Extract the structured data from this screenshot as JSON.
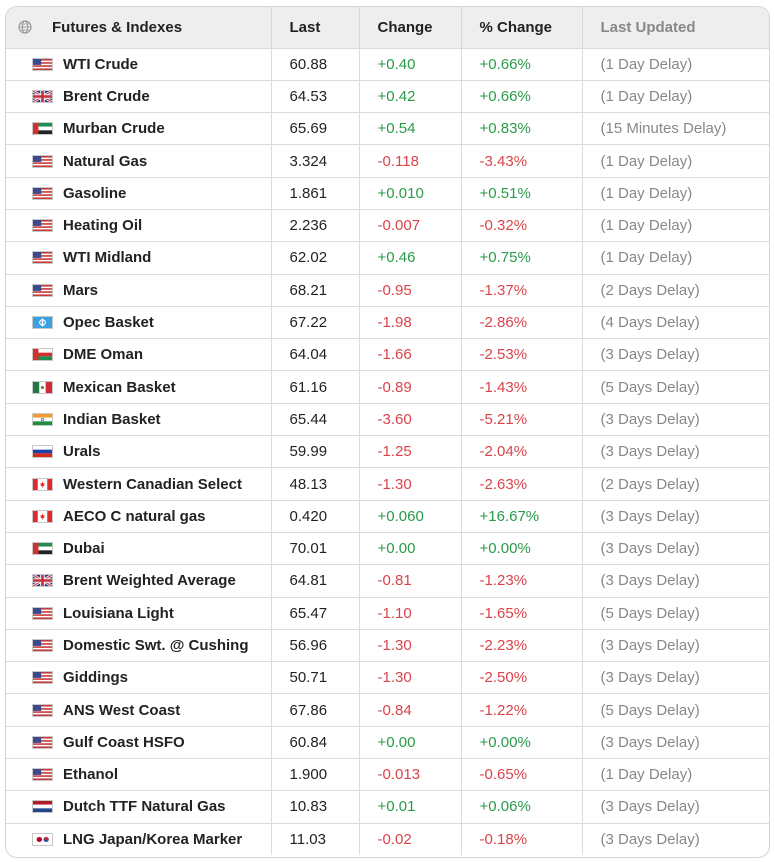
{
  "table": {
    "headers": {
      "name": "Futures & Indexes",
      "last": "Last",
      "change": "Change",
      "pct_change": "% Change",
      "updated": "Last Updated"
    },
    "rows": [
      {
        "flag": "us-flag-icon",
        "name": "WTI Crude",
        "last": "60.88",
        "change": "+0.40",
        "pct": "+0.66%",
        "updated": "(1 Day Delay)",
        "dir": "pos"
      },
      {
        "flag": "uk-flag-icon",
        "name": "Brent Crude",
        "last": "64.53",
        "change": "+0.42",
        "pct": "+0.66%",
        "updated": "(1 Day Delay)",
        "dir": "pos"
      },
      {
        "flag": "uae-flag-icon",
        "name": "Murban Crude",
        "last": "65.69",
        "change": "+0.54",
        "pct": "+0.83%",
        "updated": "(15 Minutes Delay)",
        "dir": "pos"
      },
      {
        "flag": "us-flag-icon",
        "name": "Natural Gas",
        "last": "3.324",
        "change": "-0.118",
        "pct": "-3.43%",
        "updated": "(1 Day Delay)",
        "dir": "neg"
      },
      {
        "flag": "us-flag-icon",
        "name": "Gasoline",
        "last": "1.861",
        "change": "+0.010",
        "pct": "+0.51%",
        "updated": "(1 Day Delay)",
        "dir": "pos"
      },
      {
        "flag": "us-flag-icon",
        "name": "Heating Oil",
        "last": "2.236",
        "change": "-0.007",
        "pct": "-0.32%",
        "updated": "(1 Day Delay)",
        "dir": "neg"
      },
      {
        "flag": "us-flag-icon",
        "name": "WTI Midland",
        "last": "62.02",
        "change": "+0.46",
        "pct": "+0.75%",
        "updated": "(1 Day Delay)",
        "dir": "pos"
      },
      {
        "flag": "us-flag-icon",
        "name": "Mars",
        "last": "68.21",
        "change": "-0.95",
        "pct": "-1.37%",
        "updated": "(2 Days Delay)",
        "dir": "neg"
      },
      {
        "flag": "opec-flag-icon",
        "name": "Opec Basket",
        "last": "67.22",
        "change": "-1.98",
        "pct": "-2.86%",
        "updated": "(4 Days Delay)",
        "dir": "neg"
      },
      {
        "flag": "oman-flag-icon",
        "name": "DME Oman",
        "last": "64.04",
        "change": "-1.66",
        "pct": "-2.53%",
        "updated": "(3 Days Delay)",
        "dir": "neg"
      },
      {
        "flag": "mexico-flag-icon",
        "name": "Mexican Basket",
        "last": "61.16",
        "change": "-0.89",
        "pct": "-1.43%",
        "updated": "(5 Days Delay)",
        "dir": "neg"
      },
      {
        "flag": "india-flag-icon",
        "name": "Indian Basket",
        "last": "65.44",
        "change": "-3.60",
        "pct": "-5.21%",
        "updated": "(3 Days Delay)",
        "dir": "neg"
      },
      {
        "flag": "russia-flag-icon",
        "name": "Urals",
        "last": "59.99",
        "change": "-1.25",
        "pct": "-2.04%",
        "updated": "(3 Days Delay)",
        "dir": "neg"
      },
      {
        "flag": "canada-flag-icon",
        "name": "Western Canadian Select",
        "last": "48.13",
        "change": "-1.30",
        "pct": "-2.63%",
        "updated": "(2 Days Delay)",
        "dir": "neg"
      },
      {
        "flag": "canada-flag-icon",
        "name": "AECO C natural gas",
        "last": "0.420",
        "change": "+0.060",
        "pct": "+16.67%",
        "updated": "(3 Days Delay)",
        "dir": "pos"
      },
      {
        "flag": "uae-flag-icon",
        "name": "Dubai",
        "last": "70.01",
        "change": "+0.00",
        "pct": "+0.00%",
        "updated": "(3 Days Delay)",
        "dir": "pos"
      },
      {
        "flag": "uk-flag-icon",
        "name": "Brent Weighted Average",
        "last": "64.81",
        "change": "-0.81",
        "pct": "-1.23%",
        "updated": "(3 Days Delay)",
        "dir": "neg"
      },
      {
        "flag": "us-flag-icon",
        "name": "Louisiana Light",
        "last": "65.47",
        "change": "-1.10",
        "pct": "-1.65%",
        "updated": "(5 Days Delay)",
        "dir": "neg"
      },
      {
        "flag": "us-flag-icon",
        "name": "Domestic Swt. @ Cushing",
        "last": "56.96",
        "change": "-1.30",
        "pct": "-2.23%",
        "updated": "(3 Days Delay)",
        "dir": "neg"
      },
      {
        "flag": "us-flag-icon",
        "name": "Giddings",
        "last": "50.71",
        "change": "-1.30",
        "pct": "-2.50%",
        "updated": "(3 Days Delay)",
        "dir": "neg"
      },
      {
        "flag": "us-flag-icon",
        "name": "ANS West Coast",
        "last": "67.86",
        "change": "-0.84",
        "pct": "-1.22%",
        "updated": "(5 Days Delay)",
        "dir": "neg"
      },
      {
        "flag": "us-flag-icon",
        "name": "Gulf Coast HSFO",
        "last": "60.84",
        "change": "+0.00",
        "pct": "+0.00%",
        "updated": "(3 Days Delay)",
        "dir": "pos"
      },
      {
        "flag": "us-flag-icon",
        "name": "Ethanol",
        "last": "1.900",
        "change": "-0.013",
        "pct": "-0.65%",
        "updated": "(1 Day Delay)",
        "dir": "neg"
      },
      {
        "flag": "netherlands-flag-icon",
        "name": "Dutch TTF Natural Gas",
        "last": "10.83",
        "change": "+0.01",
        "pct": "+0.06%",
        "updated": "(3 Days Delay)",
        "dir": "pos"
      },
      {
        "flag": "japan-korea-flag-icon",
        "name": "LNG Japan/Korea Marker",
        "last": "11.03",
        "change": "-0.02",
        "pct": "-0.18%",
        "updated": "(3 Days Delay)",
        "dir": "neg"
      }
    ]
  },
  "colors": {
    "positive": "#2a9a4a",
    "negative": "#d9434a",
    "muted": "#888888",
    "header_bg": "#eeeeee"
  }
}
